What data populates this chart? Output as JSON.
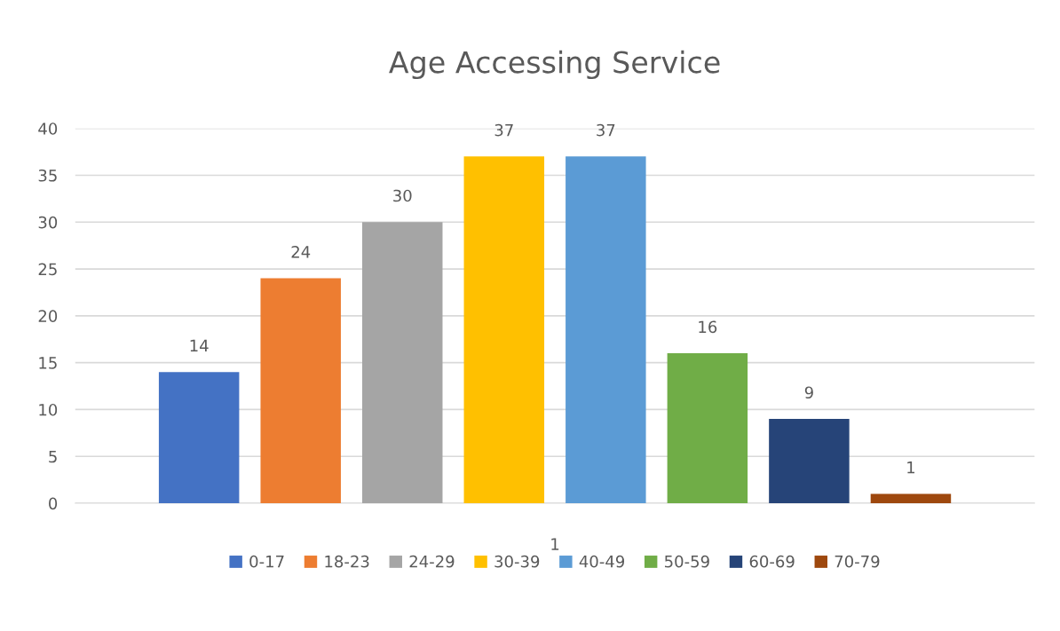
{
  "chart_data": {
    "type": "bar",
    "title": "Age Accessing Service",
    "categories": [
      "1"
    ],
    "series": [
      {
        "name": "0-17",
        "color": "#4472c4",
        "values": [
          14
        ]
      },
      {
        "name": "18-23",
        "color": "#ed7d31",
        "values": [
          24
        ]
      },
      {
        "name": "24-29",
        "color": "#a5a5a5",
        "values": [
          30
        ]
      },
      {
        "name": "30-39",
        "color": "#ffc000",
        "values": [
          37
        ]
      },
      {
        "name": "40-49",
        "color": "#5b9bd5",
        "values": [
          37
        ]
      },
      {
        "name": "50-59",
        "color": "#70ad47",
        "values": [
          16
        ]
      },
      {
        "name": "60-69",
        "color": "#264478",
        "values": [
          9
        ]
      },
      {
        "name": "70-79",
        "color": "#9e480e",
        "values": [
          1
        ]
      }
    ],
    "ylim": [
      0,
      40
    ],
    "yticks": [
      0,
      5,
      10,
      15,
      20,
      25,
      30,
      35,
      40
    ],
    "grid": "y",
    "legend": "bottom",
    "data_labels": true
  }
}
